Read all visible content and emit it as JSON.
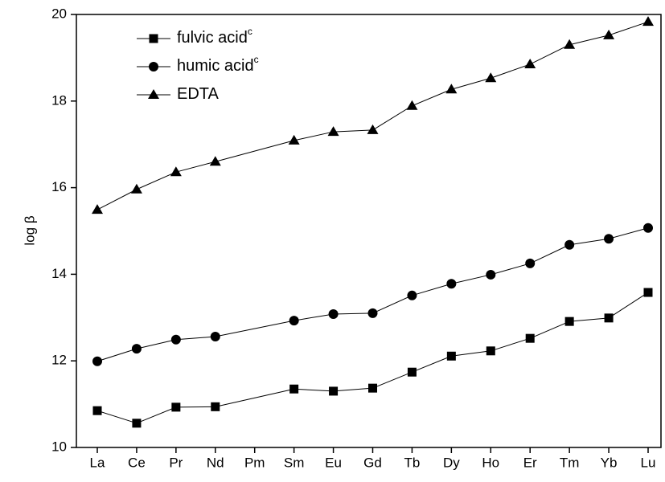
{
  "chart_data": {
    "type": "line",
    "y_label": "log β",
    "categories": [
      "La",
      "Ce",
      "Pr",
      "Nd",
      "Pm",
      "Sm",
      "Eu",
      "Gd",
      "Tb",
      "Dy",
      "Ho",
      "Er",
      "Tm",
      "Yb",
      "Lu"
    ],
    "series": [
      {
        "name": "fulvic acid",
        "superscript": "c",
        "color": "#000000",
        "marker": "square",
        "values": [
          10.85,
          10.56,
          10.93,
          10.94,
          null,
          11.35,
          11.3,
          11.37,
          11.74,
          12.11,
          12.23,
          12.52,
          12.91,
          12.99,
          13.58
        ]
      },
      {
        "name": "humic acid",
        "superscript": "c",
        "color": "#000000",
        "marker": "circle",
        "values": [
          11.99,
          12.28,
          12.49,
          12.56,
          null,
          12.93,
          13.08,
          13.1,
          13.51,
          13.78,
          13.99,
          14.25,
          14.68,
          14.82,
          15.07
        ]
      },
      {
        "name": "EDTA",
        "color": "#000000",
        "marker": "triangle",
        "values": [
          15.49,
          15.96,
          16.36,
          16.6,
          null,
          17.09,
          17.29,
          17.33,
          17.89,
          18.27,
          18.53,
          18.85,
          19.3,
          19.52,
          19.83
        ]
      }
    ],
    "ylim": [
      10,
      20
    ],
    "yticks": [
      10,
      12,
      14,
      16,
      18,
      20
    ],
    "connect_gaps": true,
    "legend": "upper left"
  }
}
